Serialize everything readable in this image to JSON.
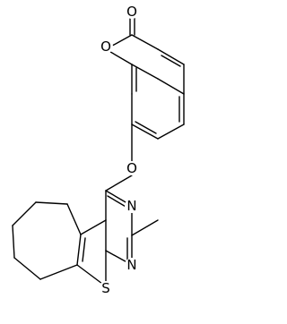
{
  "atoms": [
    "O",
    "O",
    "O",
    "N",
    "N",
    "S"
  ]
}
